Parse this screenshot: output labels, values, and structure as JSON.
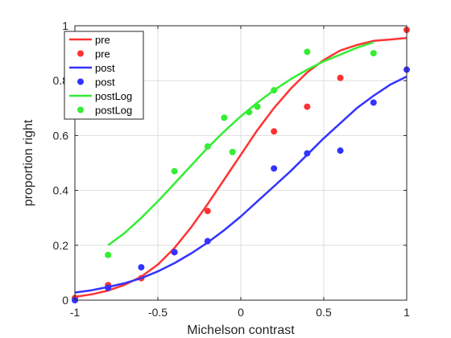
{
  "chart_data": {
    "type": "scatter",
    "xlabel": "Michelson contrast",
    "ylabel": "proportion right",
    "xlim": [
      -1,
      1
    ],
    "ylim": [
      0,
      1
    ],
    "xticks": [
      "-1",
      "-0.5",
      "0",
      "0.5",
      "1"
    ],
    "xtick_values": [
      -1,
      -0.5,
      0,
      0.5,
      1
    ],
    "yticks": [
      "0",
      "0.2",
      "0.4",
      "0.6",
      "0.8",
      "1"
    ],
    "ytick_values": [
      0,
      0.2,
      0.4,
      0.6,
      0.8,
      1
    ],
    "grid": true,
    "legend_position": "top-left",
    "series": [
      {
        "name": "pre",
        "kind": "line",
        "color": "#ff3333",
        "x": [
          -1,
          -0.9,
          -0.8,
          -0.7,
          -0.6,
          -0.5,
          -0.4,
          -0.3,
          -0.2,
          -0.1,
          0,
          0.1,
          0.2,
          0.3,
          0.4,
          0.5,
          0.6,
          0.7,
          0.8,
          0.9,
          1
        ],
        "y": [
          0.012,
          0.021,
          0.035,
          0.056,
          0.086,
          0.13,
          0.19,
          0.265,
          0.35,
          0.44,
          0.53,
          0.62,
          0.7,
          0.77,
          0.83,
          0.875,
          0.91,
          0.93,
          0.945,
          0.95,
          0.955
        ]
      },
      {
        "name": "pre",
        "kind": "points",
        "color": "#ff3333",
        "x": [
          -1,
          -0.8,
          -0.6,
          -0.4,
          -0.2,
          0.2,
          0.4,
          0.6,
          1
        ],
        "y": [
          0.008,
          0.055,
          0.08,
          0.175,
          0.325,
          0.615,
          0.705,
          0.81,
          0.985
        ]
      },
      {
        "name": "post",
        "kind": "line",
        "color": "#3333ff",
        "x": [
          -1,
          -0.9,
          -0.8,
          -0.7,
          -0.6,
          -0.5,
          -0.4,
          -0.3,
          -0.2,
          -0.1,
          0,
          0.1,
          0.2,
          0.3,
          0.4,
          0.5,
          0.6,
          0.7,
          0.8,
          0.9,
          1
        ],
        "y": [
          0.028,
          0.036,
          0.048,
          0.062,
          0.08,
          0.105,
          0.135,
          0.17,
          0.21,
          0.255,
          0.305,
          0.36,
          0.415,
          0.47,
          0.53,
          0.59,
          0.645,
          0.7,
          0.745,
          0.785,
          0.815
        ]
      },
      {
        "name": "post",
        "kind": "points",
        "color": "#3333ff",
        "x": [
          -1,
          -0.8,
          -0.6,
          -0.4,
          -0.2,
          0.2,
          0.4,
          0.6,
          0.8,
          1
        ],
        "y": [
          0.0,
          0.045,
          0.12,
          0.175,
          0.215,
          0.48,
          0.535,
          0.545,
          0.72,
          0.84
        ]
      },
      {
        "name": "postLog",
        "kind": "line",
        "color": "#33ee33",
        "x": [
          -0.8,
          -0.7,
          -0.6,
          -0.5,
          -0.4,
          -0.3,
          -0.2,
          -0.1,
          0,
          0.1,
          0.2,
          0.3,
          0.4,
          0.5,
          0.6,
          0.7,
          0.8
        ],
        "y": [
          0.2,
          0.245,
          0.3,
          0.36,
          0.425,
          0.49,
          0.555,
          0.615,
          0.67,
          0.72,
          0.765,
          0.805,
          0.84,
          0.87,
          0.895,
          0.92,
          0.94
        ]
      },
      {
        "name": "postLog",
        "kind": "points",
        "color": "#33ee33",
        "x": [
          -0.8,
          -0.4,
          -0.2,
          -0.1,
          -0.05,
          0.05,
          0.1,
          0.2,
          0.4,
          0.8
        ],
        "y": [
          0.165,
          0.47,
          0.56,
          0.665,
          0.54,
          0.685,
          0.705,
          0.765,
          0.905,
          0.9
        ]
      }
    ]
  }
}
